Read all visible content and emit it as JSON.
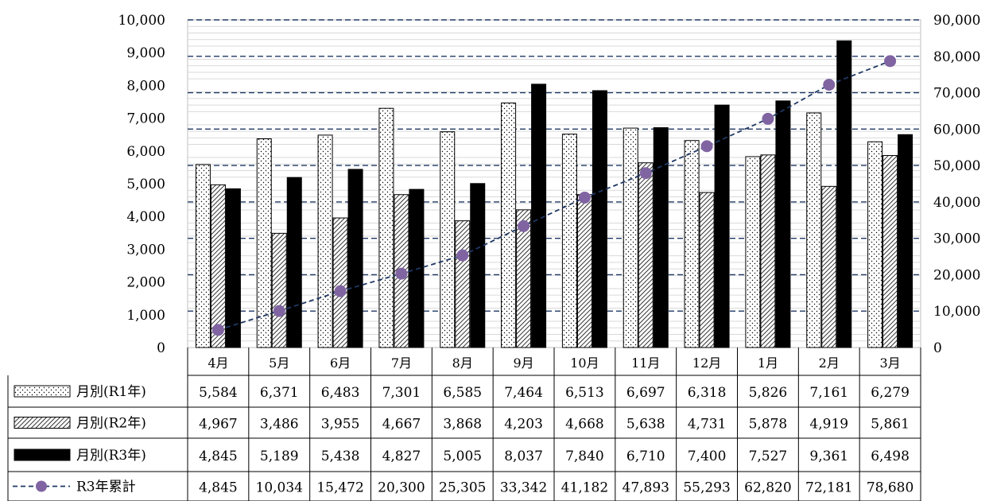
{
  "chart_data": {
    "type": "bar",
    "categories": [
      "4月",
      "5月",
      "6月",
      "7月",
      "8月",
      "9月",
      "10月",
      "11月",
      "12月",
      "1月",
      "2月",
      "3月"
    ],
    "series": [
      {
        "name": "月別(R1年)",
        "type": "bar",
        "axis": "left",
        "pattern": "dots",
        "values": [
          5584,
          6371,
          6483,
          7301,
          6585,
          7464,
          6513,
          6697,
          6318,
          5826,
          7161,
          6279
        ]
      },
      {
        "name": "月別(R2年)",
        "type": "bar",
        "axis": "left",
        "pattern": "hatch",
        "values": [
          4967,
          3486,
          3955,
          4667,
          3868,
          4203,
          4668,
          5638,
          4731,
          5878,
          4919,
          5861
        ]
      },
      {
        "name": "月別(R3年)",
        "type": "bar",
        "axis": "left",
        "pattern": "solid",
        "values": [
          4845,
          5189,
          5438,
          4827,
          5005,
          8037,
          7840,
          6710,
          7400,
          7527,
          9361,
          6498
        ]
      },
      {
        "name": "R3年累計",
        "type": "line",
        "axis": "right",
        "values": [
          4845,
          10034,
          15472,
          20300,
          25305,
          33342,
          41182,
          47893,
          55293,
          62820,
          72181,
          78680
        ]
      }
    ],
    "table_values": [
      [
        "5,584",
        "6,371",
        "6,483",
        "7,301",
        "6,585",
        "7,464",
        "6,513",
        "6,697",
        "6,318",
        "5,826",
        "7,161",
        "6,279"
      ],
      [
        "4,967",
        "3,486",
        "3,955",
        "4,667",
        "3,868",
        "4,203",
        "4,668",
        "5,638",
        "4,731",
        "5,878",
        "4,919",
        "5,861"
      ],
      [
        "4,845",
        "5,189",
        "5,438",
        "4,827",
        "5,005",
        "8,037",
        "7,840",
        "6,710",
        "7,400",
        "7,527",
        "9,361",
        "6,498"
      ],
      [
        "4,845",
        "10,034",
        "15,472",
        "20,300",
        "25,305",
        "33,342",
        "41,182",
        "47,893",
        "55,293",
        "62,820",
        "72,181",
        "78,680"
      ]
    ],
    "ylim_left": [
      0,
      10000
    ],
    "ylim_right": [
      0,
      90000
    ],
    "yticks_left": [
      "0",
      "1,000",
      "2,000",
      "3,000",
      "4,000",
      "5,000",
      "6,000",
      "7,000",
      "8,000",
      "9,000",
      "10,000"
    ],
    "yticks_right": [
      "0",
      "10,000",
      "20,000",
      "30,000",
      "40,000",
      "50,000",
      "60,000",
      "70,000",
      "80,000",
      "90,000"
    ],
    "grid": true,
    "legend_position": "bottom-data-table",
    "colors": {
      "bar_outline": "#000000",
      "solid": "#000000",
      "line": "#1f3864",
      "marker": "#8064a2",
      "grid_major": "#1f3864",
      "grid_minor": "#d9d9d9"
    }
  }
}
